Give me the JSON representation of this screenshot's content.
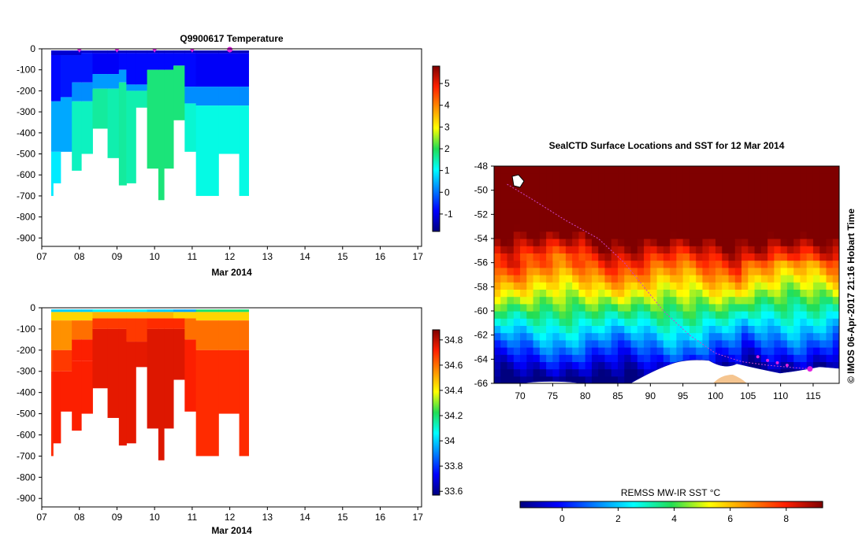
{
  "chart_data": [
    {
      "type": "heatmap",
      "title": "Q9900617  Temperature",
      "xlabel": "Mar 2014",
      "x_ticks": [
        "07",
        "08",
        "09",
        "10",
        "11",
        "12",
        "13",
        "14",
        "15",
        "16",
        "17"
      ],
      "y_ticks": [
        0,
        -100,
        -200,
        -300,
        -400,
        -500,
        -600,
        -700,
        -800,
        -900
      ],
      "ylim": [
        -940,
        0
      ],
      "xlim": [
        7,
        17.1
      ],
      "colorbar_ticks": [
        5,
        4,
        3,
        2,
        1,
        0,
        -1
      ],
      "colorbar_range": [
        -1.8,
        5.8
      ],
      "profile_markers_x": [
        8.0,
        9.0,
        10.0,
        11.0,
        12.0
      ],
      "profiles": [
        {
          "x0": 7.25,
          "x1": 7.3,
          "depth": 700,
          "layers": [
            [
              -1.2,
              -30
            ],
            [
              -0.8,
              -250
            ],
            [
              0.4,
              -490
            ],
            [
              0.9,
              -700
            ]
          ]
        },
        {
          "x0": 7.3,
          "x1": 7.5,
          "depth": 640,
          "layers": [
            [
              -1.2,
              -30
            ],
            [
              -0.8,
              -250
            ],
            [
              0.4,
              -490
            ],
            [
              0.9,
              -640
            ]
          ]
        },
        {
          "x0": 7.5,
          "x1": 7.8,
          "depth": 490,
          "layers": [
            [
              -1.2,
              -30
            ],
            [
              -0.7,
              -230
            ],
            [
              0.4,
              -490
            ]
          ]
        },
        {
          "x0": 7.8,
          "x1": 8.05,
          "depth": 580,
          "layers": [
            [
              -1.2,
              -30
            ],
            [
              -0.7,
              -160
            ],
            [
              0.2,
              -250
            ],
            [
              1.4,
              -580
            ]
          ]
        },
        {
          "x0": 8.05,
          "x1": 8.35,
          "depth": 500,
          "layers": [
            [
              -1.2,
              -20
            ],
            [
              -0.7,
              -160
            ],
            [
              0.2,
              -250
            ],
            [
              1.4,
              -500
            ]
          ]
        },
        {
          "x0": 8.35,
          "x1": 8.75,
          "depth": 380,
          "layers": [
            [
              -1.3,
              -20
            ],
            [
              -0.9,
              -120
            ],
            [
              0.3,
              -190
            ],
            [
              1.6,
              -380
            ]
          ]
        },
        {
          "x0": 8.75,
          "x1": 9.05,
          "depth": 520,
          "layers": [
            [
              -1.3,
              -20
            ],
            [
              -0.9,
              -120
            ],
            [
              0.3,
              -190
            ],
            [
              1.5,
              -520
            ]
          ]
        },
        {
          "x0": 9.05,
          "x1": 9.25,
          "depth": 650,
          "layers": [
            [
              -1.3,
              -20
            ],
            [
              -0.8,
              -100
            ],
            [
              0.3,
              -160
            ],
            [
              1.6,
              -650
            ]
          ]
        },
        {
          "x0": 9.25,
          "x1": 9.5,
          "depth": 640,
          "layers": [
            [
              -1.3,
              -20
            ],
            [
              -0.8,
              -170
            ],
            [
              0.3,
              -200
            ],
            [
              1.5,
              -640
            ]
          ]
        },
        {
          "x0": 9.5,
          "x1": 9.8,
          "depth": 280,
          "layers": [
            [
              -1.3,
              -20
            ],
            [
              -0.8,
              -170
            ],
            [
              0.3,
              -200
            ],
            [
              1.5,
              -280
            ]
          ]
        },
        {
          "x0": 9.8,
          "x1": 10.1,
          "depth": 570,
          "layers": [
            [
              -1.3,
              -20
            ],
            [
              -0.8,
              -100
            ],
            [
              1.8,
              -570
            ]
          ]
        },
        {
          "x0": 10.1,
          "x1": 10.25,
          "depth": 720,
          "layers": [
            [
              -1.3,
              -20
            ],
            [
              -0.8,
              -100
            ],
            [
              1.8,
              -720
            ]
          ]
        },
        {
          "x0": 10.25,
          "x1": 10.5,
          "depth": 570,
          "layers": [
            [
              -1.3,
              -20
            ],
            [
              -0.8,
              -100
            ],
            [
              1.8,
              -570
            ]
          ]
        },
        {
          "x0": 10.5,
          "x1": 10.8,
          "depth": 340,
          "layers": [
            [
              -1.3,
              -20
            ],
            [
              -0.8,
              -80
            ],
            [
              1.8,
              -340
            ]
          ]
        },
        {
          "x0": 10.8,
          "x1": 11.1,
          "depth": 490,
          "layers": [
            [
              -1.3,
              -20
            ],
            [
              -0.8,
              -180
            ],
            [
              0.2,
              -260
            ],
            [
              1.3,
              -490
            ]
          ]
        },
        {
          "x0": 11.1,
          "x1": 11.7,
          "depth": 700,
          "layers": [
            [
              -1.4,
              -20
            ],
            [
              -0.9,
              -180
            ],
            [
              0.2,
              -270
            ],
            [
              1.2,
              -700
            ]
          ]
        },
        {
          "x0": 11.7,
          "x1": 12.25,
          "depth": 500,
          "layers": [
            [
              -1.4,
              -20
            ],
            [
              -0.9,
              -180
            ],
            [
              0.2,
              -270
            ],
            [
              1.2,
              -500
            ]
          ]
        },
        {
          "x0": 12.25,
          "x1": 12.5,
          "depth": 700,
          "layers": [
            [
              -1.4,
              -20
            ],
            [
              -0.9,
              -180
            ],
            [
              0.2,
              -270
            ],
            [
              1.2,
              -700
            ]
          ]
        }
      ]
    },
    {
      "type": "heatmap",
      "title": "",
      "xlabel": "Mar 2014",
      "x_ticks": [
        "07",
        "08",
        "09",
        "10",
        "11",
        "12",
        "13",
        "14",
        "15",
        "16",
        "17"
      ],
      "y_ticks": [
        0,
        -100,
        -200,
        -300,
        -400,
        -500,
        -600,
        -700,
        -800,
        -900
      ],
      "ylim": [
        -940,
        0
      ],
      "xlim": [
        7,
        17.1
      ],
      "colorbar_ticks": [
        34.8,
        34.6,
        34.4,
        34.2,
        34,
        33.8,
        33.6
      ],
      "colorbar_range": [
        33.57,
        34.88
      ],
      "profiles": [
        {
          "x0": 7.25,
          "x1": 7.3,
          "depth": 700,
          "layers": [
            [
              34.0,
              -20
            ],
            [
              34.45,
              -60
            ],
            [
              34.55,
              -200
            ],
            [
              34.65,
              -300
            ],
            [
              34.7,
              -700
            ]
          ]
        },
        {
          "x0": 7.3,
          "x1": 7.5,
          "depth": 640,
          "layers": [
            [
              34.0,
              -20
            ],
            [
              34.45,
              -60
            ],
            [
              34.55,
              -200
            ],
            [
              34.68,
              -300
            ],
            [
              34.72,
              -640
            ]
          ]
        },
        {
          "x0": 7.5,
          "x1": 7.8,
          "depth": 490,
          "layers": [
            [
              34.0,
              -20
            ],
            [
              34.45,
              -60
            ],
            [
              34.55,
              -200
            ],
            [
              34.68,
              -300
            ],
            [
              34.72,
              -490
            ]
          ]
        },
        {
          "x0": 7.8,
          "x1": 8.05,
          "depth": 580,
          "layers": [
            [
              34.0,
              -20
            ],
            [
              34.45,
              -60
            ],
            [
              34.6,
              -150
            ],
            [
              34.72,
              -250
            ],
            [
              34.72,
              -580
            ]
          ]
        },
        {
          "x0": 8.05,
          "x1": 8.35,
          "depth": 500,
          "layers": [
            [
              34.0,
              -20
            ],
            [
              34.45,
              -60
            ],
            [
              34.6,
              -150
            ],
            [
              34.72,
              -250
            ],
            [
              34.72,
              -500
            ]
          ]
        },
        {
          "x0": 8.35,
          "x1": 8.75,
          "depth": 380,
          "layers": [
            [
              34.05,
              -20
            ],
            [
              34.5,
              -50
            ],
            [
              34.68,
              -100
            ],
            [
              34.75,
              -380
            ]
          ]
        },
        {
          "x0": 8.75,
          "x1": 9.05,
          "depth": 520,
          "layers": [
            [
              34.05,
              -20
            ],
            [
              34.5,
              -50
            ],
            [
              34.68,
              -100
            ],
            [
              34.75,
              -520
            ]
          ]
        },
        {
          "x0": 9.05,
          "x1": 9.25,
          "depth": 650,
          "layers": [
            [
              34.05,
              -20
            ],
            [
              34.5,
              -50
            ],
            [
              34.68,
              -100
            ],
            [
              34.75,
              -650
            ]
          ]
        },
        {
          "x0": 9.25,
          "x1": 9.5,
          "depth": 640,
          "layers": [
            [
              34.05,
              -20
            ],
            [
              34.5,
              -50
            ],
            [
              34.68,
              -160
            ],
            [
              34.75,
              -640
            ]
          ]
        },
        {
          "x0": 9.5,
          "x1": 9.8,
          "depth": 280,
          "layers": [
            [
              34.05,
              -20
            ],
            [
              34.5,
              -50
            ],
            [
              34.68,
              -160
            ],
            [
              34.75,
              -280
            ]
          ]
        },
        {
          "x0": 9.8,
          "x1": 10.1,
          "depth": 570,
          "layers": [
            [
              34.0,
              -20
            ],
            [
              34.5,
              -50
            ],
            [
              34.7,
              -100
            ],
            [
              34.76,
              -570
            ]
          ]
        },
        {
          "x0": 10.1,
          "x1": 10.25,
          "depth": 720,
          "layers": [
            [
              34.0,
              -20
            ],
            [
              34.5,
              -50
            ],
            [
              34.7,
              -100
            ],
            [
              34.76,
              -720
            ]
          ]
        },
        {
          "x0": 10.25,
          "x1": 10.5,
          "depth": 570,
          "layers": [
            [
              34.0,
              -20
            ],
            [
              34.5,
              -50
            ],
            [
              34.7,
              -100
            ],
            [
              34.76,
              -570
            ]
          ]
        },
        {
          "x0": 10.5,
          "x1": 10.8,
          "depth": 340,
          "layers": [
            [
              33.95,
              -20
            ],
            [
              34.45,
              -50
            ],
            [
              34.7,
              -100
            ],
            [
              34.76,
              -340
            ]
          ]
        },
        {
          "x0": 10.8,
          "x1": 11.1,
          "depth": 490,
          "layers": [
            [
              33.95,
              -20
            ],
            [
              34.45,
              -50
            ],
            [
              34.6,
              -150
            ],
            [
              34.72,
              -490
            ]
          ]
        },
        {
          "x0": 11.1,
          "x1": 11.7,
          "depth": 700,
          "layers": [
            [
              34.2,
              -20
            ],
            [
              34.45,
              -60
            ],
            [
              34.6,
              -200
            ],
            [
              34.7,
              -700
            ]
          ]
        },
        {
          "x0": 11.7,
          "x1": 12.25,
          "depth": 500,
          "layers": [
            [
              34.2,
              -20
            ],
            [
              34.45,
              -60
            ],
            [
              34.6,
              -200
            ],
            [
              34.7,
              -500
            ]
          ]
        },
        {
          "x0": 12.25,
          "x1": 12.5,
          "depth": 700,
          "layers": [
            [
              34.2,
              -20
            ],
            [
              34.45,
              -60
            ],
            [
              34.6,
              -200
            ],
            [
              34.7,
              -700
            ]
          ]
        }
      ]
    },
    {
      "type": "heatmap",
      "title": "SealCTD Surface Locations and SST for 12 Mar 2014",
      "x_ticks": [
        "70",
        "75",
        "80",
        "85",
        "90",
        "95",
        "100",
        "105",
        "110",
        "115"
      ],
      "y_ticks": [
        "-48",
        "-50",
        "-52",
        "-54",
        "-56",
        "-58",
        "-60",
        "-62",
        "-64",
        "-66"
      ],
      "xlim": [
        66,
        119
      ],
      "ylim": [
        -66,
        -48
      ],
      "side_note": "© IMOS 06-Apr-2017 21:16 Hobart Time",
      "colorbar_label": "REMSS MW-IR SST °C",
      "colorbar_ticks": [
        "0",
        "2",
        "4",
        "6",
        "8"
      ],
      "colorbar_range": [
        -1.5,
        9.3
      ],
      "track": [
        [
          68,
          -49.5
        ],
        [
          72,
          -50.8
        ],
        [
          77,
          -52.5
        ],
        [
          82,
          -54
        ],
        [
          86,
          -56
        ],
        [
          89,
          -58
        ],
        [
          92,
          -60
        ],
        [
          96,
          -62
        ],
        [
          100,
          -63.5
        ],
        [
          104,
          -64.2
        ],
        [
          108,
          -64.5
        ],
        [
          112,
          -64.7
        ],
        [
          114.5,
          -64.8
        ]
      ],
      "surface_points": [
        [
          106.5,
          -63.8
        ],
        [
          108,
          -64.1
        ],
        [
          109.5,
          -64.3
        ],
        [
          111,
          -64.5
        ],
        [
          114.5,
          -64.8
        ]
      ]
    }
  ],
  "colors": {
    "marker": "#e020e0",
    "axis": "#000000"
  }
}
